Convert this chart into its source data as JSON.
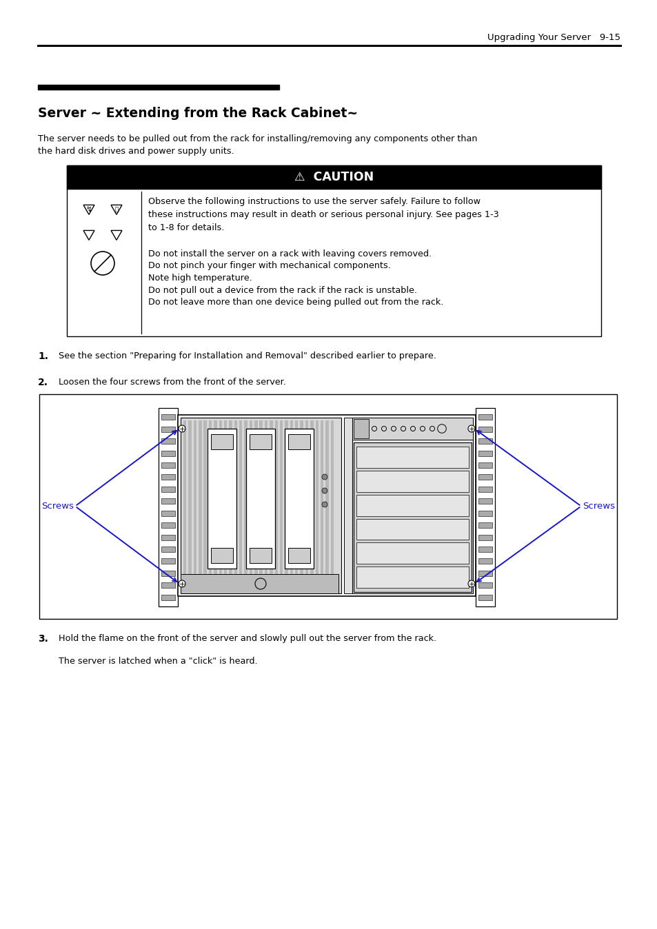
{
  "page_header_right": "Upgrading Your Server   9-15",
  "section_title": "Server ~ Extending from the Rack Cabinet~",
  "intro_text": "The server needs to be pulled out from the rack for installing/removing any components other than\nthe hard disk drives and power supply units.",
  "caution_title": "⚠  CAUTION",
  "caution_main": "Observe the following instructions to use the server safely. Failure to follow\nthese instructions may result in death or serious personal injury. See pages 1-3\nto 1-8 for details.",
  "caution_bullets": [
    "Do not install the server on a rack with leaving covers removed.",
    "Do not pinch your finger with mechanical components.",
    "Note high temperature.",
    "Do not pull out a device from the rack if the rack is unstable.",
    "Do not leave more than one device being pulled out from the rack."
  ],
  "step1": "See the section \"Preparing for Installation and Removal\" described earlier to prepare.",
  "step2": "Loosen the four screws from the front of the server.",
  "step3": "Hold the flame on the front of the server and slowly pull out the server from the rack.",
  "step3b": "The server is latched when a \"click\" is heard.",
  "screws_label": "Screws",
  "bg_color": "#ffffff",
  "text_color": "#000000",
  "blue_color": "#1515cc",
  "caution_bg": "#000000",
  "caution_text": "#ffffff"
}
